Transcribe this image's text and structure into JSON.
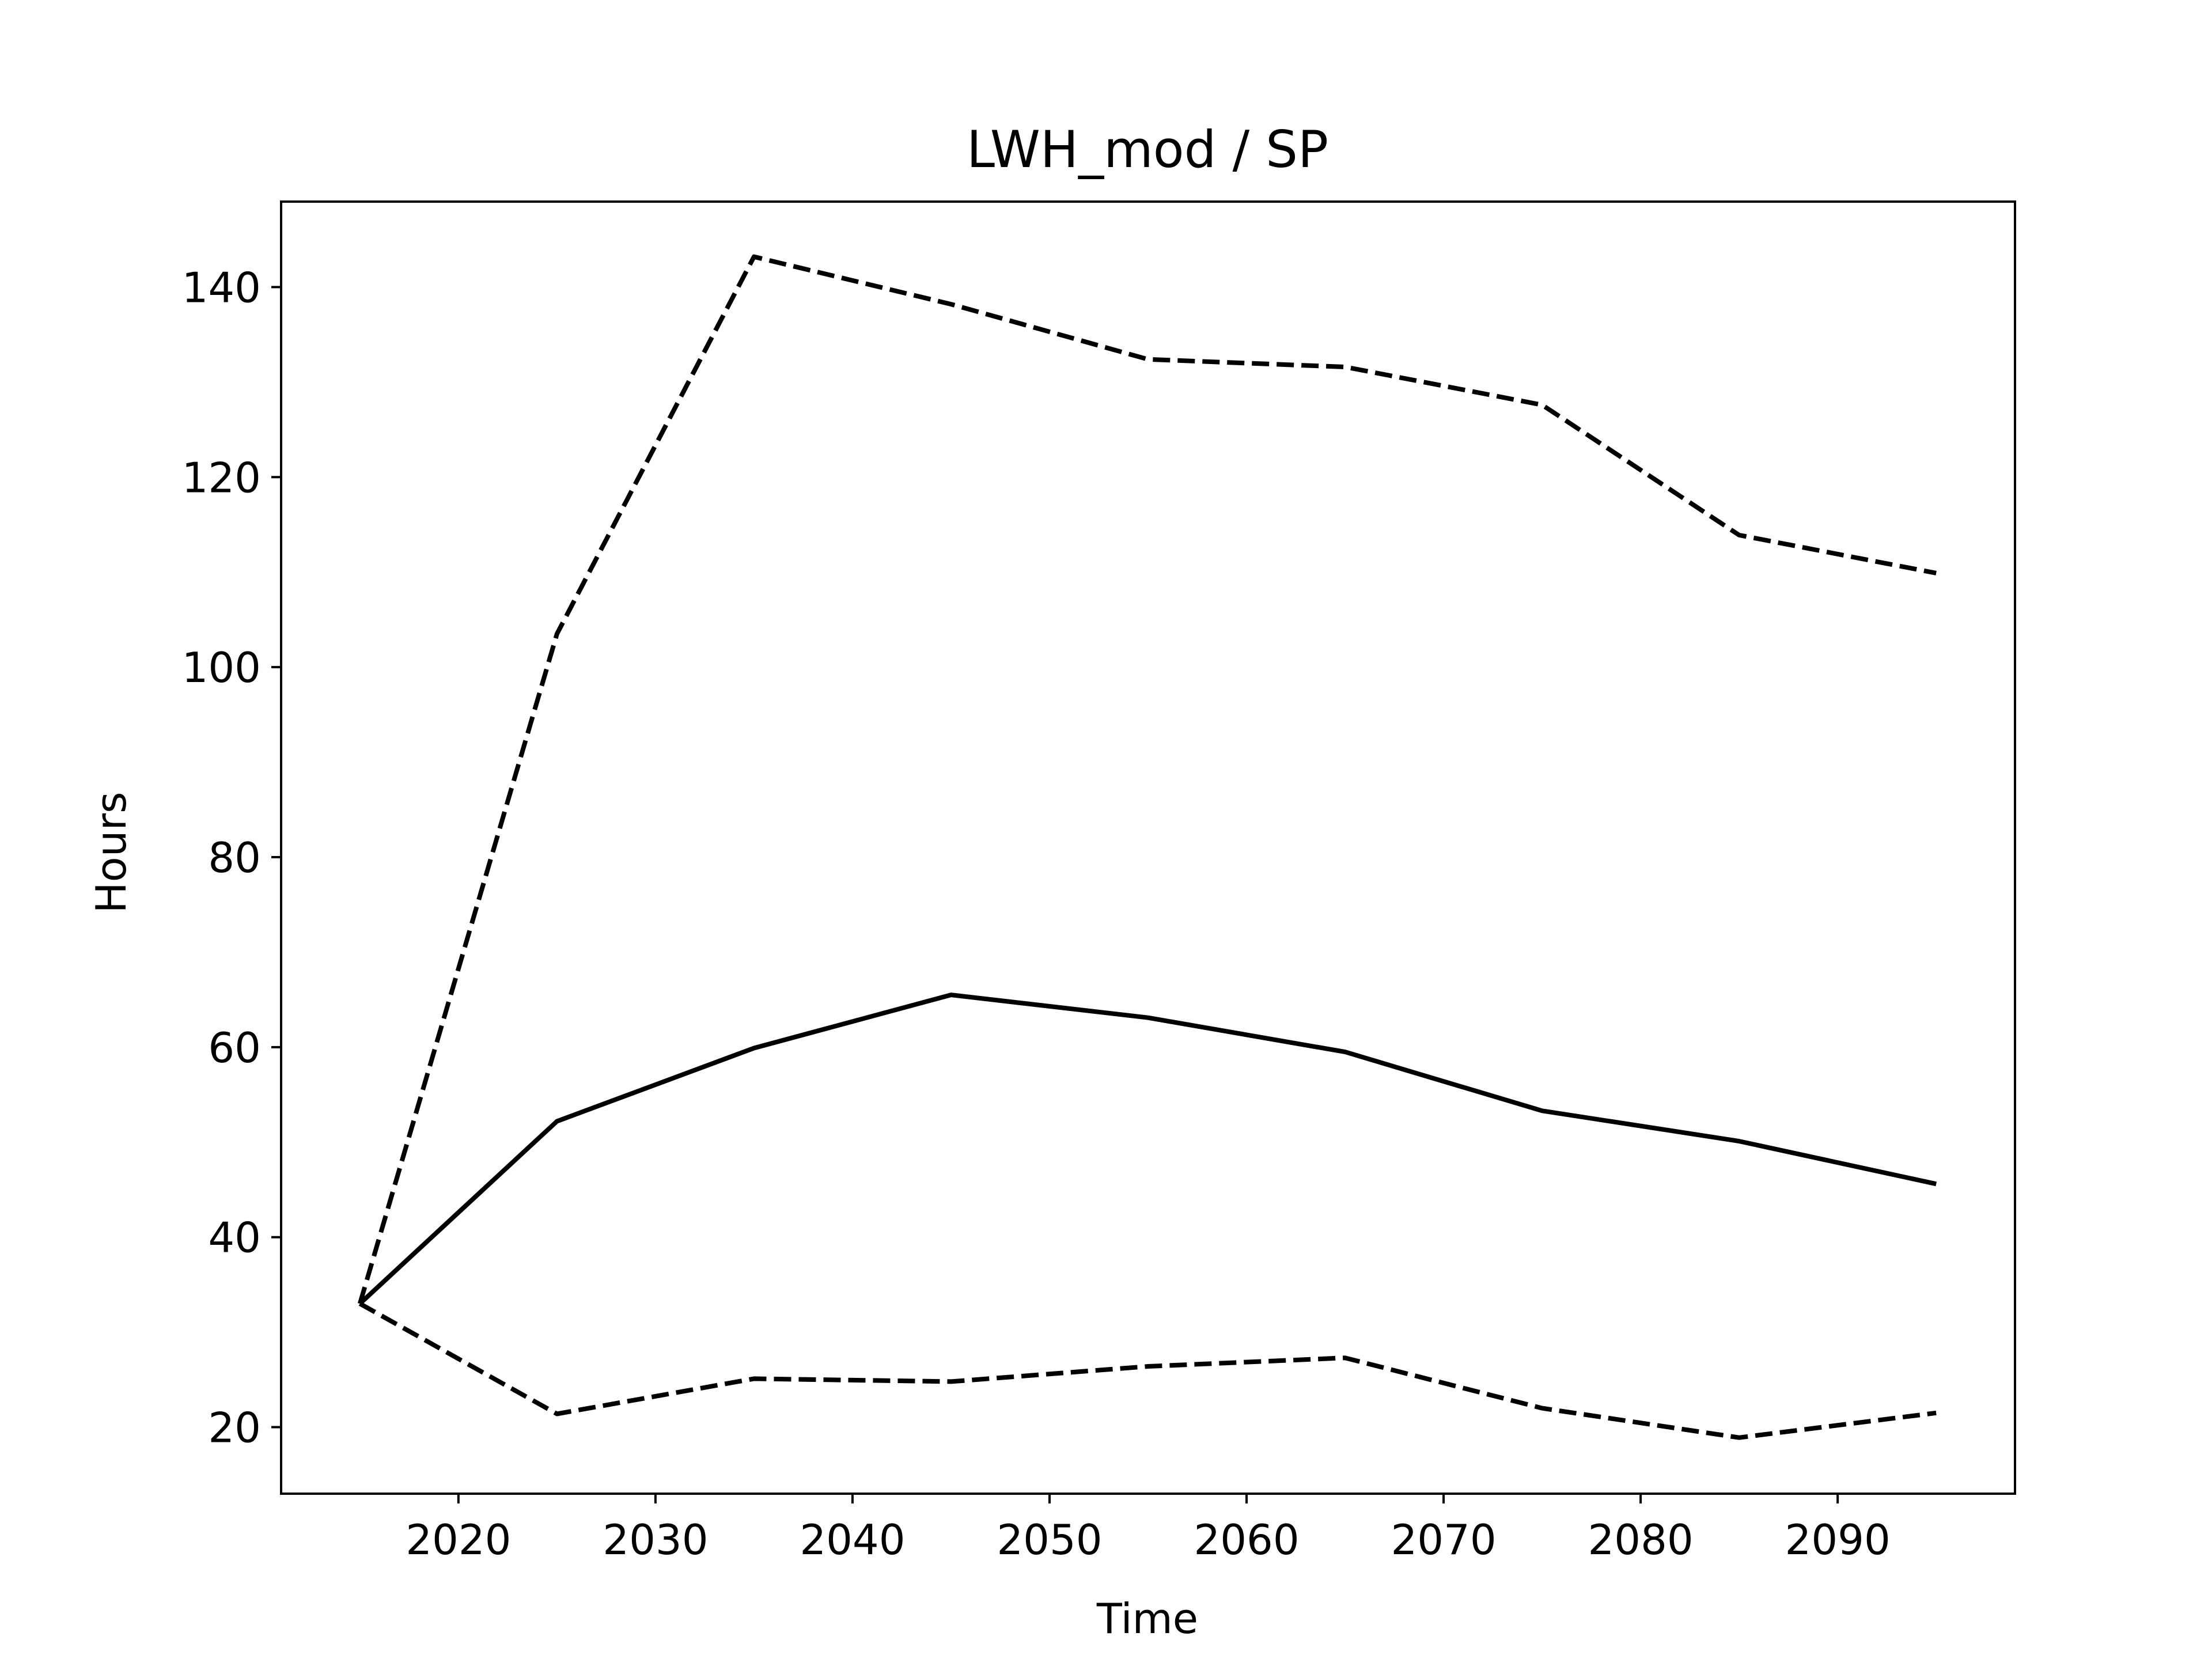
{
  "chart_data": {
    "type": "line",
    "title": "LWH_mod / SP",
    "xlabel": "Time",
    "ylabel": "Hours",
    "xlim": [
      2011,
      2099
    ],
    "ylim": [
      13,
      149
    ],
    "xticks": [
      2020,
      2030,
      2040,
      2050,
      2060,
      2070,
      2080,
      2090
    ],
    "yticks": [
      20,
      40,
      60,
      80,
      100,
      120,
      140
    ],
    "x": [
      2015,
      2025,
      2035,
      2045,
      2055,
      2065,
      2075,
      2085,
      2095
    ],
    "series": [
      {
        "style": "solid",
        "color": "#000000",
        "values": [
          33,
          52.2,
          59.9,
          65.5,
          63.1,
          59.5,
          53.3,
          50.1,
          45.6
        ]
      },
      {
        "style": "dashed",
        "color": "#000000",
        "values": [
          33,
          103.5,
          143.2,
          138.2,
          132.4,
          131.6,
          127.6,
          113.9,
          109.9
        ]
      },
      {
        "style": "dashed",
        "color": "#000000",
        "values": [
          33,
          21.4,
          25.1,
          24.8,
          26.4,
          27.3,
          22.0,
          18.9,
          21.5
        ]
      }
    ],
    "grid": false,
    "legend": "none"
  }
}
